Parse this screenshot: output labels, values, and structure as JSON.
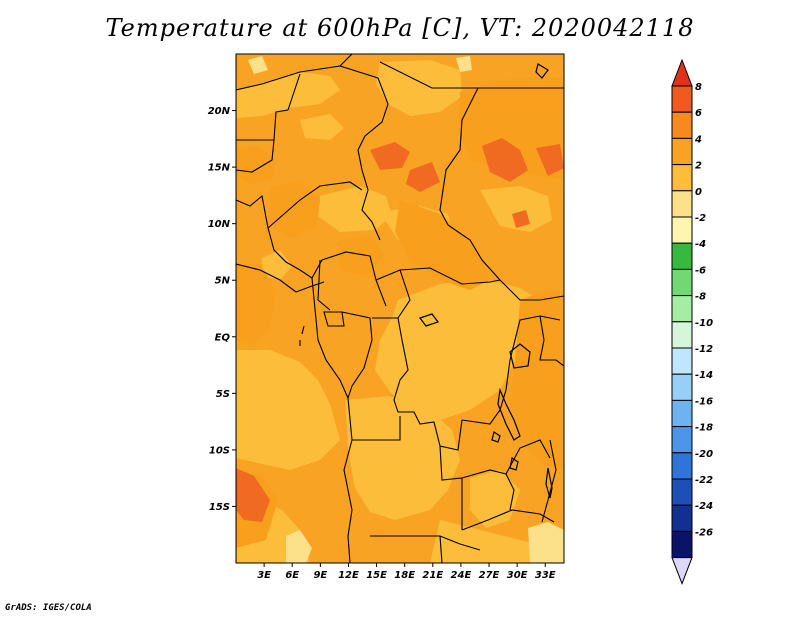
{
  "title": "Temperature at 600hPa [C], VT: 2020042118",
  "footer": "GrADS: IGES/COLA",
  "map": {
    "lat_labels": [
      "20N",
      "15N",
      "10N",
      "5N",
      "EQ",
      "5S",
      "10S",
      "15S"
    ],
    "lat_values": [
      20,
      15,
      10,
      5,
      0,
      -5,
      -10,
      -15
    ],
    "lon_labels": [
      "3E",
      "6E",
      "9E",
      "12E",
      "15E",
      "18E",
      "21E",
      "24E",
      "27E",
      "30E",
      "33E"
    ],
    "lon_values": [
      3,
      6,
      9,
      12,
      15,
      18,
      21,
      24,
      27,
      30,
      33
    ],
    "lon_range": [
      0,
      35
    ],
    "lat_range": [
      -20,
      25
    ]
  },
  "colorbar": {
    "labels": [
      "8",
      "6",
      "4",
      "2",
      "0",
      "-2",
      "-4",
      "-6",
      "-8",
      "-10",
      "-12",
      "-14",
      "-16",
      "-18",
      "-20",
      "-22",
      "-24",
      "-26"
    ],
    "colors": [
      "#e03218",
      "#f05a20",
      "#f7891e",
      "#f9a325",
      "#fbbd3a",
      "#fde08a",
      "#fef6b0",
      "#37b940",
      "#72d873",
      "#a5eda2",
      "#d5f6d9",
      "#bfe6fb",
      "#96d0f7",
      "#6db3ef",
      "#4b96e6",
      "#2f74d8",
      "#1c50b8",
      "#12308f",
      "#0b1366",
      "#dcd8f5"
    ]
  }
}
